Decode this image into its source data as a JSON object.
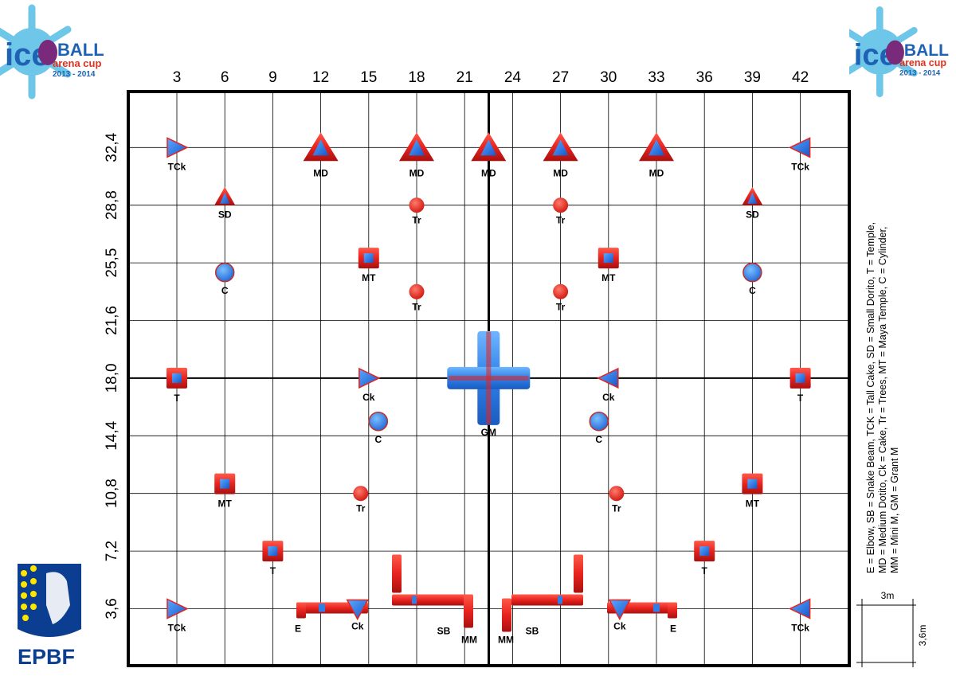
{
  "header": {
    "logo_ice": "ice",
    "logo_ball": "BALL",
    "logo_sub": "arena cup",
    "logo_years": "2013 - 2014"
  },
  "footer_logo": "EPBF",
  "x_ticks": [
    "3",
    "6",
    "9",
    "12",
    "15",
    "18",
    "21",
    "24",
    "27",
    "30",
    "33",
    "36",
    "39",
    "42"
  ],
  "y_ticks": [
    "32,4",
    "28,8",
    "25,5",
    "21,6",
    "18,0",
    "14,4",
    "10,8",
    "7,2",
    "3,6"
  ],
  "legend": {
    "line1": "E = Elbow, SB = Snake Beam, TCK = Tall Cake, SD = Small Dorito, T = Temple,",
    "line2": "MD = Medium Dotito, Ck = Cake, Tr = Trees, MT = Maya Temple, C = Cylinder,",
    "line3": "MM = Mini M, GM = Grant M"
  },
  "scale": {
    "width_label": "3m",
    "height_label": "3,6m"
  },
  "colors": {
    "red": "#e8231f",
    "blue": "#2f7fe8",
    "darkred": "#9b1010",
    "grid": "#000000",
    "legend_yellow": "#ffe600",
    "epbf_blue": "#0b3d91"
  },
  "bunkers": [
    {
      "type": "tck",
      "x": 3,
      "y": 32.4,
      "label": "TCk",
      "dir": "right"
    },
    {
      "type": "md",
      "x": 12,
      "y": 32.4,
      "label": "MD"
    },
    {
      "type": "md",
      "x": 18,
      "y": 32.4,
      "label": "MD"
    },
    {
      "type": "md",
      "x": 22.5,
      "y": 32.4,
      "label": "MD"
    },
    {
      "type": "md",
      "x": 27,
      "y": 32.4,
      "label": "MD"
    },
    {
      "type": "md",
      "x": 33,
      "y": 32.4,
      "label": "MD"
    },
    {
      "type": "tck",
      "x": 42,
      "y": 32.4,
      "label": "TCk",
      "dir": "left"
    },
    {
      "type": "sd",
      "x": 6,
      "y": 28.8,
      "label": "SD"
    },
    {
      "type": "tr",
      "x": 18,
      "y": 28.8,
      "label": "Tr"
    },
    {
      "type": "tr",
      "x": 27,
      "y": 28.8,
      "label": "Tr"
    },
    {
      "type": "sd",
      "x": 39,
      "y": 28.8,
      "label": "SD"
    },
    {
      "type": "mt",
      "x": 15,
      "y": 25.5,
      "label": "MT"
    },
    {
      "type": "mt",
      "x": 30,
      "y": 25.5,
      "label": "MT"
    },
    {
      "type": "c",
      "x": 6,
      "y": 24.6,
      "label": "C"
    },
    {
      "type": "c",
      "x": 39,
      "y": 24.6,
      "label": "C"
    },
    {
      "type": "tr",
      "x": 18,
      "y": 23.4,
      "label": "Tr"
    },
    {
      "type": "tr",
      "x": 27,
      "y": 23.4,
      "label": "Tr"
    },
    {
      "type": "t",
      "x": 3,
      "y": 18.0,
      "label": "T"
    },
    {
      "type": "ck",
      "x": 15,
      "y": 18.0,
      "label": "Ck",
      "dir": "right"
    },
    {
      "type": "gm",
      "x": 22.5,
      "y": 18.0,
      "label": "GM"
    },
    {
      "type": "ck",
      "x": 30,
      "y": 18.0,
      "label": "Ck",
      "dir": "left"
    },
    {
      "type": "t",
      "x": 42,
      "y": 18.0,
      "label": "T"
    },
    {
      "type": "c",
      "x": 15.6,
      "y": 15.3,
      "label": "C"
    },
    {
      "type": "c",
      "x": 29.4,
      "y": 15.3,
      "label": "C"
    },
    {
      "type": "mt",
      "x": 6,
      "y": 11.4,
      "label": "MT"
    },
    {
      "type": "mt",
      "x": 39,
      "y": 11.4,
      "label": "MT"
    },
    {
      "type": "tr",
      "x": 14.5,
      "y": 10.8,
      "label": "Tr"
    },
    {
      "type": "tr",
      "x": 30.5,
      "y": 10.8,
      "label": "Tr"
    },
    {
      "type": "t",
      "x": 9,
      "y": 7.2,
      "label": "T"
    },
    {
      "type": "t",
      "x": 36,
      "y": 7.2,
      "label": "T"
    },
    {
      "type": "tck",
      "x": 3,
      "y": 3.6,
      "label": "TCk",
      "dir": "right"
    },
    {
      "type": "ck",
      "x": 14.3,
      "y": 3.6,
      "label": "Ck",
      "dir": "down"
    },
    {
      "type": "ck",
      "x": 30.7,
      "y": 3.6,
      "label": "Ck",
      "dir": "down"
    },
    {
      "type": "tck",
      "x": 42,
      "y": 3.6,
      "label": "TCk",
      "dir": "left"
    }
  ],
  "beams": [
    {
      "type": "e",
      "label": "E",
      "side": "left"
    },
    {
      "type": "sb",
      "label": "SB",
      "side": "left"
    },
    {
      "type": "mm",
      "label": "MM",
      "side": "left"
    },
    {
      "type": "mm",
      "label": "MM",
      "side": "right"
    },
    {
      "type": "sb",
      "label": "SB",
      "side": "right"
    },
    {
      "type": "e",
      "label": "E",
      "side": "right"
    }
  ]
}
